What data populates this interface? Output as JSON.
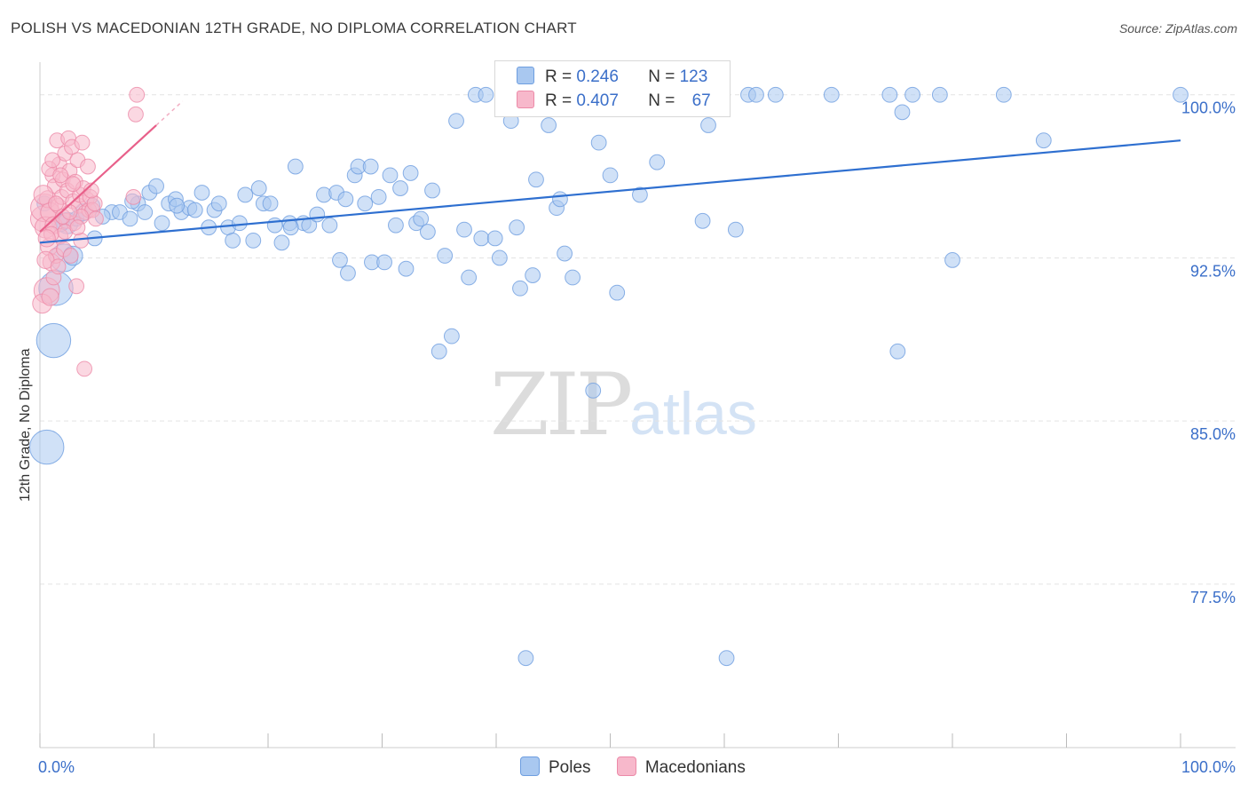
{
  "title": "POLISH VS MACEDONIAN 12TH GRADE, NO DIPLOMA CORRELATION CHART",
  "source": "Source: ZipAtlas.com",
  "watermark": {
    "zip": "ZIP",
    "atlas": "atlas"
  },
  "legend": {
    "rows": [
      {
        "r_label": "R =",
        "r_value": "0.246",
        "n_label": "N =",
        "n_value": "123",
        "color": "#a9c8f0"
      },
      {
        "r_label": "R =",
        "r_value": "0.407",
        "n_label": "N =",
        "n_value": "67",
        "color": "#f7b8cb"
      }
    ]
  },
  "bottom_legend": [
    {
      "label": "Poles",
      "color": "#a9c8f0"
    },
    {
      "label": "Macedonians",
      "color": "#f7b8cb"
    }
  ],
  "chart_data": {
    "type": "scatter",
    "title": "POLISH VS MACEDONIAN 12TH GRADE, NO DIPLOMA CORRELATION CHART",
    "xlabel": "",
    "ylabel": "12th Grade, No Diploma",
    "xlim": [
      0,
      100
    ],
    "ylim": [
      70.8,
      101.5
    ],
    "x_tick_labels": [
      "0.0%",
      "100.0%"
    ],
    "y_ticks": [
      77.5,
      85.0,
      92.5,
      100.0
    ],
    "y_tick_labels": [
      "77.5%",
      "85.0%",
      "92.5%",
      "100.0%"
    ],
    "grid": "horizontal dashed",
    "colors": {
      "poles": "#a9c8f0",
      "poles_edge": "#6e9ee0",
      "poles_line": "#2e6fd0",
      "mac": "#f7b8cb",
      "mac_edge": "#ec8aa8",
      "mac_line": "#e8608a",
      "tick_label": "#3b6fc9"
    },
    "series": [
      {
        "name": "Poles",
        "trend": {
          "x": [
            0,
            100
          ],
          "y": [
            93.2,
            97.9
          ]
        },
        "points": [
          [
            0.6,
            83.8,
            1.6
          ],
          [
            1.2,
            88.7,
            1.6
          ],
          [
            1.4,
            91.1,
            1.6
          ],
          [
            2.1,
            92.5,
            1.3
          ],
          [
            2.4,
            94.1,
            1.0
          ],
          [
            3.2,
            94.3,
            0.7
          ],
          [
            3.8,
            94.6,
            0.8
          ],
          [
            4.8,
            93.4,
            0.7
          ],
          [
            4.6,
            94.9,
            0.7
          ],
          [
            6.3,
            94.6,
            0.7
          ],
          [
            7.0,
            94.6,
            0.7
          ],
          [
            7.9,
            94.3,
            0.7
          ],
          [
            8.6,
            95.0,
            0.7
          ],
          [
            9.2,
            94.6,
            0.7
          ],
          [
            9.6,
            95.5,
            0.7
          ],
          [
            10.2,
            95.8,
            0.7
          ],
          [
            10.7,
            94.1,
            0.7
          ],
          [
            11.3,
            95.0,
            0.7
          ],
          [
            11.9,
            95.2,
            0.7
          ],
          [
            12.4,
            94.6,
            0.7
          ],
          [
            13.1,
            94.8,
            0.7
          ],
          [
            13.6,
            94.7,
            0.7
          ],
          [
            14.2,
            95.5,
            0.7
          ],
          [
            14.8,
            93.9,
            0.7
          ],
          [
            15.3,
            94.7,
            0.7
          ],
          [
            15.7,
            95.0,
            0.7
          ],
          [
            16.5,
            93.9,
            0.7
          ],
          [
            16.9,
            93.3,
            0.7
          ],
          [
            17.5,
            94.1,
            0.7
          ],
          [
            18.0,
            95.4,
            0.7
          ],
          [
            18.7,
            93.3,
            0.7
          ],
          [
            19.2,
            95.7,
            0.7
          ],
          [
            19.6,
            95.0,
            0.7
          ],
          [
            20.2,
            95.0,
            0.7
          ],
          [
            20.6,
            94.0,
            0.7
          ],
          [
            21.2,
            93.2,
            0.7
          ],
          [
            21.9,
            94.1,
            0.7
          ],
          [
            22.4,
            96.7,
            0.7
          ],
          [
            23.1,
            94.1,
            0.7
          ],
          [
            23.6,
            94.0,
            0.7
          ],
          [
            24.3,
            94.5,
            0.7
          ],
          [
            24.9,
            95.4,
            0.7
          ],
          [
            25.4,
            94.0,
            0.7
          ],
          [
            26.0,
            95.5,
            0.7
          ],
          [
            26.3,
            92.4,
            0.7
          ],
          [
            26.8,
            95.2,
            0.7
          ],
          [
            27.0,
            91.8,
            0.7
          ],
          [
            27.6,
            96.3,
            0.7
          ],
          [
            27.9,
            96.7,
            0.7
          ],
          [
            28.5,
            95.0,
            0.7
          ],
          [
            29.0,
            96.7,
            0.7
          ],
          [
            29.1,
            92.3,
            0.7
          ],
          [
            29.7,
            95.3,
            0.7
          ],
          [
            30.2,
            92.3,
            0.7
          ],
          [
            30.7,
            96.3,
            0.7
          ],
          [
            31.2,
            94.0,
            0.7
          ],
          [
            31.6,
            95.7,
            0.7
          ],
          [
            32.1,
            92.0,
            0.7
          ],
          [
            32.5,
            96.4,
            0.7
          ],
          [
            33.0,
            94.1,
            0.7
          ],
          [
            33.4,
            94.3,
            0.7
          ],
          [
            34.0,
            93.7,
            0.7
          ],
          [
            34.4,
            95.6,
            0.7
          ],
          [
            35.0,
            88.2,
            0.7
          ],
          [
            35.5,
            92.6,
            0.7
          ],
          [
            36.1,
            88.9,
            0.7
          ],
          [
            36.5,
            98.8,
            0.7
          ],
          [
            37.2,
            93.8,
            0.7
          ],
          [
            37.6,
            91.6,
            0.7
          ],
          [
            38.2,
            100.0,
            0.7
          ],
          [
            38.7,
            93.4,
            0.7
          ],
          [
            39.1,
            100.0,
            0.7
          ],
          [
            39.9,
            93.4,
            0.7
          ],
          [
            40.3,
            92.5,
            0.7
          ],
          [
            40.9,
            100.0,
            0.7
          ],
          [
            41.3,
            98.8,
            0.7
          ],
          [
            41.8,
            93.9,
            0.7
          ],
          [
            42.1,
            91.1,
            0.7
          ],
          [
            42.6,
            74.1,
            0.7
          ],
          [
            43.2,
            91.7,
            0.7
          ],
          [
            43.5,
            96.1,
            0.7
          ],
          [
            44.1,
            100.0,
            0.7
          ],
          [
            44.6,
            98.6,
            0.7
          ],
          [
            45.3,
            94.8,
            0.7
          ],
          [
            45.6,
            95.2,
            0.7
          ],
          [
            46.0,
            92.7,
            0.7
          ],
          [
            46.7,
            91.6,
            0.7
          ],
          [
            47.1,
            100.0,
            0.7
          ],
          [
            47.6,
            100.0,
            0.7
          ],
          [
            48.5,
            86.4,
            0.7
          ],
          [
            49.0,
            97.8,
            0.7
          ],
          [
            49.4,
            100.0,
            0.7
          ],
          [
            50.0,
            96.3,
            0.7
          ],
          [
            50.6,
            90.9,
            0.7
          ],
          [
            51.1,
            100.0,
            0.7
          ],
          [
            52.6,
            95.4,
            0.7
          ],
          [
            53.4,
            100.0,
            0.7
          ],
          [
            54.1,
            96.9,
            0.7
          ],
          [
            54.9,
            100.0,
            0.7
          ],
          [
            58.1,
            94.2,
            0.7
          ],
          [
            58.6,
            98.6,
            0.7
          ],
          [
            60.2,
            74.1,
            0.7
          ],
          [
            61.0,
            93.8,
            0.7
          ],
          [
            62.1,
            100.0,
            0.7
          ],
          [
            62.8,
            100.0,
            0.7
          ],
          [
            64.5,
            100.0,
            0.7
          ],
          [
            69.4,
            100.0,
            0.7
          ],
          [
            74.5,
            100.0,
            0.7
          ],
          [
            75.2,
            88.2,
            0.7
          ],
          [
            75.6,
            99.2,
            0.7
          ],
          [
            76.5,
            100.0,
            0.7
          ],
          [
            78.9,
            100.0,
            0.7
          ],
          [
            80.0,
            92.4,
            0.7
          ],
          [
            84.5,
            100.0,
            0.7
          ],
          [
            88.0,
            97.9,
            0.7
          ],
          [
            100.0,
            100.0,
            0.7
          ],
          [
            1.8,
            94.1,
            0.8
          ],
          [
            5.5,
            94.4,
            0.7
          ],
          [
            8.1,
            95.1,
            0.7
          ],
          [
            12.0,
            94.9,
            0.7
          ],
          [
            2.9,
            92.6,
            0.9
          ],
          [
            0.4,
            95.0,
            0.7
          ],
          [
            22.0,
            93.9,
            0.7
          ]
        ]
      },
      {
        "name": "Macedonians",
        "trend": {
          "x": [
            0,
            10.2
          ],
          "y": [
            93.7,
            98.6
          ]
        },
        "points": [
          [
            0.3,
            94.3,
            1.2
          ],
          [
            0.4,
            94.8,
            1.3
          ],
          [
            0.5,
            93.9,
            1.0
          ],
          [
            0.6,
            91.0,
            1.2
          ],
          [
            0.7,
            95.2,
            0.8
          ],
          [
            0.8,
            93.0,
            0.8
          ],
          [
            0.9,
            94.6,
            0.9
          ],
          [
            1.0,
            92.3,
            0.8
          ],
          [
            1.1,
            96.3,
            0.7
          ],
          [
            1.2,
            94.0,
            0.8
          ],
          [
            1.3,
            95.8,
            0.7
          ],
          [
            1.4,
            92.6,
            0.7
          ],
          [
            1.5,
            97.9,
            0.7
          ],
          [
            1.6,
            94.9,
            0.7
          ],
          [
            1.7,
            96.8,
            0.7
          ],
          [
            1.8,
            93.5,
            0.7
          ],
          [
            1.9,
            95.3,
            0.7
          ],
          [
            2.0,
            96.1,
            0.7
          ],
          [
            2.1,
            92.9,
            0.7
          ],
          [
            2.2,
            97.3,
            0.7
          ],
          [
            2.3,
            94.2,
            0.7
          ],
          [
            2.4,
            95.6,
            0.7
          ],
          [
            2.5,
            98.0,
            0.7
          ],
          [
            2.6,
            96.5,
            0.7
          ],
          [
            2.7,
            92.6,
            0.7
          ],
          [
            2.8,
            97.6,
            0.7
          ],
          [
            2.9,
            95.1,
            0.7
          ],
          [
            3.0,
            94.1,
            0.7
          ],
          [
            3.1,
            96.0,
            0.7
          ],
          [
            3.2,
            91.2,
            0.7
          ],
          [
            3.3,
            97.0,
            0.7
          ],
          [
            3.4,
            94.9,
            0.7
          ],
          [
            3.5,
            95.4,
            0.7
          ],
          [
            3.6,
            93.3,
            0.7
          ],
          [
            3.7,
            97.8,
            0.7
          ],
          [
            3.8,
            95.7,
            0.7
          ],
          [
            3.9,
            87.4,
            0.7
          ],
          [
            4.0,
            94.6,
            0.7
          ],
          [
            4.1,
            95.2,
            0.7
          ],
          [
            4.2,
            96.7,
            0.7
          ],
          [
            4.3,
            94.7,
            0.7
          ],
          [
            4.4,
            95.3,
            0.7
          ],
          [
            4.6,
            94.7,
            0.7
          ],
          [
            4.8,
            95.0,
            0.7
          ],
          [
            4.9,
            94.3,
            0.7
          ],
          [
            8.2,
            95.3,
            0.7
          ],
          [
            8.4,
            99.1,
            0.7
          ],
          [
            8.5,
            100.0,
            0.7
          ],
          [
            0.2,
            90.4,
            0.9
          ],
          [
            0.5,
            92.4,
            0.8
          ],
          [
            0.9,
            90.7,
            0.8
          ],
          [
            1.2,
            91.6,
            0.7
          ],
          [
            1.6,
            92.1,
            0.7
          ],
          [
            0.3,
            95.4,
            0.9
          ],
          [
            0.8,
            96.6,
            0.7
          ],
          [
            1.0,
            93.6,
            0.7
          ],
          [
            1.4,
            95.0,
            0.7
          ],
          [
            2.2,
            93.7,
            0.7
          ],
          [
            2.9,
            95.9,
            0.7
          ],
          [
            3.6,
            94.4,
            0.7
          ],
          [
            1.1,
            97.0,
            0.7
          ],
          [
            2.0,
            94.4,
            0.7
          ],
          [
            0.6,
            93.4,
            0.8
          ],
          [
            1.8,
            96.3,
            0.7
          ],
          [
            4.5,
            95.6,
            0.7
          ],
          [
            2.6,
            94.6,
            0.7
          ],
          [
            3.3,
            93.9,
            0.7
          ]
        ]
      }
    ]
  }
}
